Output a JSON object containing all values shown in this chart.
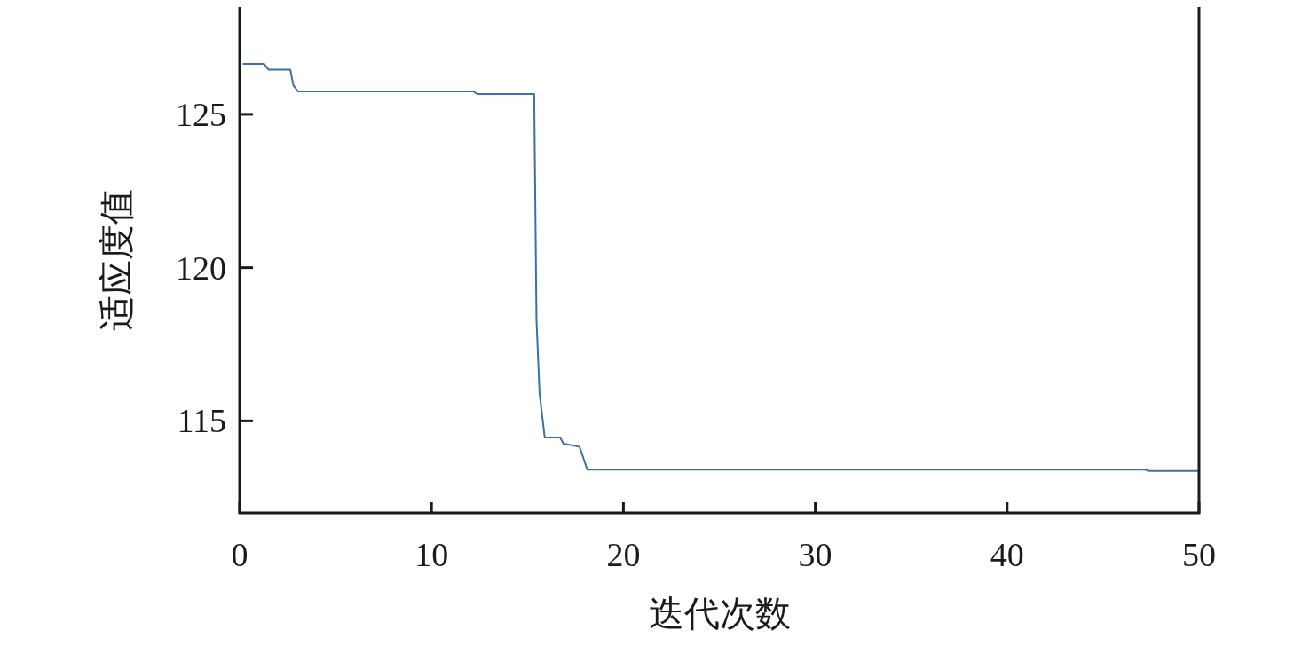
{
  "chart_data": {
    "type": "line",
    "xlabel": "迭代次数",
    "ylabel": "适应度值",
    "xlim": [
      0,
      50
    ],
    "ylim": [
      112,
      128.5
    ],
    "xticks": [
      0,
      10,
      20,
      30,
      40,
      50
    ],
    "yticks": [
      115,
      120,
      125
    ],
    "series": [
      {
        "color": "#3d6fa8",
        "x": [
          0.2,
          1.27,
          1.5,
          2.64,
          2.8,
          3.04,
          12.17,
          12.4,
          15.35,
          15.47,
          15.63,
          15.9,
          16.7,
          16.88,
          17.71,
          18.12,
          47.2,
          47.4,
          50
        ],
        "values": [
          126.65,
          126.65,
          126.46,
          126.46,
          125.95,
          125.75,
          125.75,
          125.66,
          125.66,
          118.3,
          115.9,
          114.46,
          114.46,
          114.26,
          114.16,
          113.41,
          113.41,
          113.37,
          113.37
        ]
      }
    ]
  }
}
